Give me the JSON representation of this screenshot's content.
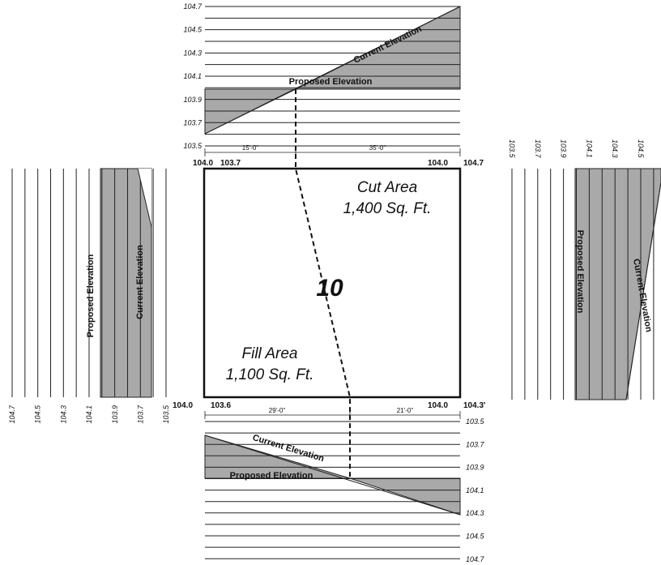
{
  "top_profile": {
    "elevations": [
      "104.7",
      "104.5",
      "104.3",
      "104.1",
      "103.9",
      "103.7",
      "103.5"
    ],
    "current_label": "Current Elevation",
    "proposed_label": "Proposed Elevation",
    "dimensions": [
      "15'-0\"",
      "35'-0\""
    ]
  },
  "corners": {
    "top": [
      "104.0",
      "103.7",
      "104.0",
      "104.7"
    ],
    "bottom": [
      "104.0",
      "103.6",
      "104.0",
      "104.3'"
    ]
  },
  "square": {
    "number": "10",
    "cut": {
      "title": "Cut Area",
      "area": "1,400 Sq. Ft."
    },
    "fill": {
      "title": "Fill Area",
      "area": "1,100 Sq. Ft."
    }
  },
  "bottom_profile": {
    "elevations": [
      "103.5",
      "103.7",
      "103.9",
      "104.1",
      "104.3",
      "104.5",
      "104.7"
    ],
    "current_label": "Current Elevation",
    "proposed_label": "Proposed Elevation",
    "dimensions": [
      "29'-0\"",
      "21'-0\""
    ]
  },
  "left_profile": {
    "elevations": [
      "104.7",
      "104.5",
      "104.3",
      "104.1",
      "103.9",
      "103.7",
      "103.5"
    ],
    "current_label": "Current Elevation",
    "proposed_label": "Proposed Elevation"
  },
  "right_profile": {
    "elevations": [
      "103.5",
      "103.7",
      "103.9",
      "104.1",
      "104.3",
      "104.5"
    ],
    "current_label": "Current Elevation",
    "proposed_label": "Proposed Elevation"
  }
}
